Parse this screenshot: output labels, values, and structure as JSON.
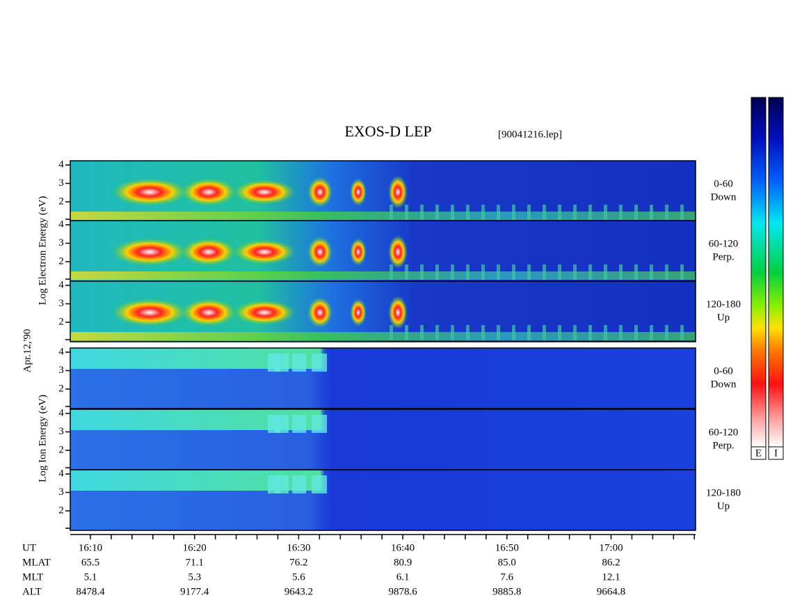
{
  "title": "EXOS-D LEP",
  "file": "[90041216.lep]",
  "electron": {
    "axis_label": "Log Electron Energy (eV)",
    "panels": [
      {
        "angle": "0-60",
        "direction": "Down"
      },
      {
        "angle": "60-120",
        "direction": "Perp."
      },
      {
        "angle": "120-180",
        "direction": "Up"
      }
    ]
  },
  "date": "Apr.12,'90",
  "ion": {
    "axis_label": "Log Ion Energy (eV)",
    "panels": [
      {
        "angle": "0-60",
        "direction": "Down"
      },
      {
        "angle": "60-120",
        "direction": "Perp."
      },
      {
        "angle": "120-180",
        "direction": "Up"
      }
    ]
  },
  "yticks": [
    2,
    3,
    4
  ],
  "colorbars": [
    "E",
    "I"
  ],
  "footer": {
    "rows": [
      [
        "UT",
        "16:10",
        "16:20",
        "16:30",
        "16:40",
        "16:50",
        "17:00"
      ],
      [
        "MLAT",
        "65.5",
        "71.1",
        "76.2",
        "80.9",
        "85.0",
        "86.2"
      ],
      [
        "MLT",
        "5.1",
        "5.3",
        "5.6",
        "6.1",
        "7.6",
        "12.1"
      ],
      [
        "ALT",
        "8478.4",
        "9177.4",
        "9643.2",
        "9878.6",
        "9885.8",
        "9664.8"
      ]
    ]
  }
}
